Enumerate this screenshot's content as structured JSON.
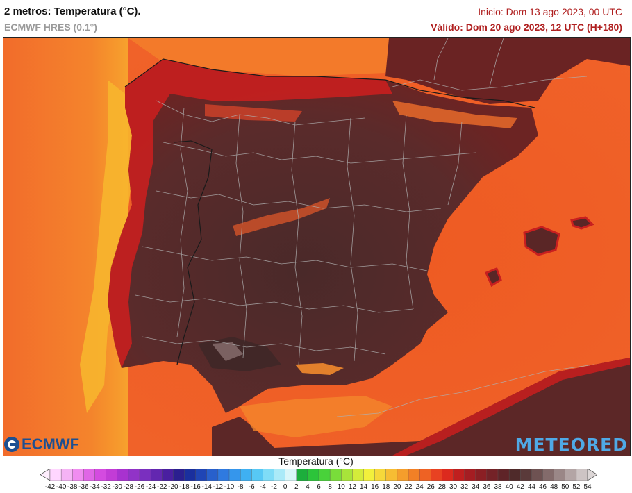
{
  "header": {
    "title": "2 metros: Temperatura (°C).",
    "model": "ECMWF HRES (0.1°)",
    "init": "Inicio: Dom 13 ago 2023, 00 UTC",
    "valid": "Válido: Dom 20 ago 2023, 12 UTC (H+180)"
  },
  "logos": {
    "ecmwf": "ECMWF",
    "meteored": "METEORED"
  },
  "legend": {
    "title": "Temperatura (°C)",
    "ticks": [
      "-42",
      "-40",
      "-38",
      "-36",
      "-34",
      "-32",
      "-30",
      "-28",
      "-26",
      "-24",
      "-22",
      "-20",
      "-18",
      "-16",
      "-14",
      "-12",
      "-10",
      "-8",
      "-6",
      "-4",
      "-2",
      "0",
      "2",
      "4",
      "6",
      "8",
      "10",
      "12",
      "14",
      "16",
      "18",
      "20",
      "22",
      "24",
      "26",
      "28",
      "30",
      "32",
      "34",
      "36",
      "38",
      "40",
      "42",
      "44",
      "46",
      "48",
      "50",
      "52",
      "54"
    ],
    "colors": [
      "#ffd6ff",
      "#f5b3f5",
      "#f08cf0",
      "#e066e6",
      "#d44be0",
      "#c23cd6",
      "#a832cf",
      "#9133c7",
      "#7a2fbf",
      "#6327b0",
      "#4a1fa0",
      "#2b1f8f",
      "#1a2f9e",
      "#1f45b5",
      "#2860cc",
      "#2f7ae0",
      "#3596ec",
      "#3fb0f2",
      "#57c8f5",
      "#7fdcf7",
      "#aaeaf8",
      "#d9f6f9",
      "#1cae3c",
      "#2cc43a",
      "#49d23a",
      "#79dd3a",
      "#a8e43a",
      "#d4ec3a",
      "#f2f03c",
      "#f6d83a",
      "#f7bd33",
      "#f59e2c",
      "#f28026",
      "#ee6224",
      "#e84222",
      "#dc2a1e",
      "#c01f1f",
      "#a51d22",
      "#8b1f24",
      "#742227",
      "#5f2428",
      "#4f2a2a",
      "#5a3a3a",
      "#6e5252",
      "#836b6b",
      "#9a8787",
      "#b3a5a5",
      "#cdc4c4"
    ]
  },
  "map": {
    "region": "Península Ibérica"
  }
}
